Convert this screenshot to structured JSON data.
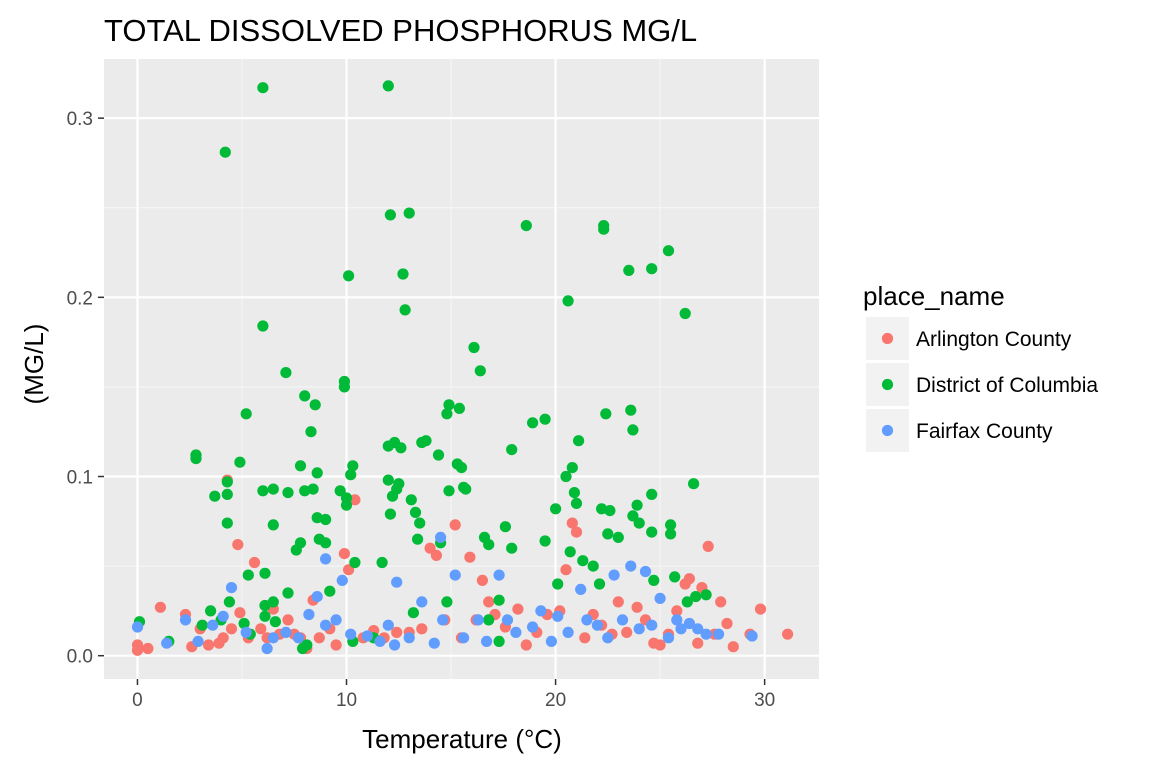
{
  "chart_data": {
    "type": "scatter",
    "title": "TOTAL DISSOLVED PHOSPHORUS MG/L",
    "xlabel": "Temperature (°C)",
    "ylabel": "(MG/L)",
    "xlim": [
      -1.6,
      32.6
    ],
    "ylim": [
      -0.013,
      0.333
    ],
    "x_ticks": [
      0,
      10,
      20,
      30
    ],
    "x_tick_labels": [
      "0",
      "10",
      "20",
      "30"
    ],
    "y_ticks": [
      0.0,
      0.1,
      0.2,
      0.3
    ],
    "y_tick_labels": [
      "0.0",
      "0.1",
      "0.2",
      "0.3"
    ],
    "grid": true,
    "legend_title": "place_name",
    "legend_position": "right",
    "series": [
      {
        "name": "Arlington County",
        "color": "#F8766D",
        "points": [
          [
            0,
            0.006
          ],
          [
            0,
            0.003
          ],
          [
            0.5,
            0.004
          ],
          [
            1.1,
            0.027
          ],
          [
            2.3,
            0.023
          ],
          [
            2.6,
            0.005
          ],
          [
            3.0,
            0.015
          ],
          [
            3.4,
            0.006
          ],
          [
            3.9,
            0.007
          ],
          [
            4.1,
            0.01
          ],
          [
            4.3,
            0.098
          ],
          [
            4.5,
            0.015
          ],
          [
            4.8,
            0.062
          ],
          [
            4.9,
            0.024
          ],
          [
            5.3,
            0.01
          ],
          [
            5.6,
            0.052
          ],
          [
            5.9,
            0.015
          ],
          [
            6.2,
            0.01
          ],
          [
            6.5,
            0.026
          ],
          [
            6.8,
            0.012
          ],
          [
            7.2,
            0.02
          ],
          [
            7.5,
            0.012
          ],
          [
            7.8,
            0.01
          ],
          [
            8.1,
            0.004
          ],
          [
            8.4,
            0.031
          ],
          [
            8.7,
            0.01
          ],
          [
            9.2,
            0.015
          ],
          [
            9.5,
            0.006
          ],
          [
            9.9,
            0.057
          ],
          [
            10.1,
            0.048
          ],
          [
            10.4,
            0.087
          ],
          [
            10.8,
            0.01
          ],
          [
            11.3,
            0.014
          ],
          [
            11.8,
            0.01
          ],
          [
            12.4,
            0.013
          ],
          [
            13.0,
            0.013
          ],
          [
            13.6,
            0.015
          ],
          [
            14.0,
            0.06
          ],
          [
            14.3,
            0.056
          ],
          [
            14.7,
            0.02
          ],
          [
            15.2,
            0.073
          ],
          [
            15.5,
            0.01
          ],
          [
            15.9,
            0.055
          ],
          [
            16.2,
            0.02
          ],
          [
            16.5,
            0.042
          ],
          [
            16.8,
            0.03
          ],
          [
            17.1,
            0.023
          ],
          [
            17.6,
            0.016
          ],
          [
            18.2,
            0.026
          ],
          [
            18.6,
            0.006
          ],
          [
            19.1,
            0.013
          ],
          [
            19.6,
            0.023
          ],
          [
            20.2,
            0.025
          ],
          [
            20.5,
            0.048
          ],
          [
            20.8,
            0.074
          ],
          [
            21.0,
            0.069
          ],
          [
            21.4,
            0.01
          ],
          [
            21.8,
            0.023
          ],
          [
            22.2,
            0.017
          ],
          [
            22.7,
            0.012
          ],
          [
            23.0,
            0.03
          ],
          [
            23.4,
            0.013
          ],
          [
            23.9,
            0.027
          ],
          [
            24.3,
            0.02
          ],
          [
            24.7,
            0.007
          ],
          [
            25.0,
            0.006
          ],
          [
            25.4,
            0.012
          ],
          [
            25.8,
            0.025
          ],
          [
            26.2,
            0.04
          ],
          [
            26.4,
            0.043
          ],
          [
            26.8,
            0.007
          ],
          [
            27.0,
            0.038
          ],
          [
            27.3,
            0.061
          ],
          [
            27.6,
            0.012
          ],
          [
            27.9,
            0.03
          ],
          [
            28.2,
            0.018
          ],
          [
            28.5,
            0.005
          ],
          [
            29.3,
            0.012
          ],
          [
            29.8,
            0.026
          ],
          [
            31.1,
            0.012
          ]
        ]
      },
      {
        "name": "District of Columbia",
        "color": "#00BA38",
        "points": [
          [
            0.1,
            0.019
          ],
          [
            1.5,
            0.008
          ],
          [
            2.8,
            0.112
          ],
          [
            2.8,
            0.11
          ],
          [
            3.1,
            0.017
          ],
          [
            3.5,
            0.025
          ],
          [
            3.7,
            0.089
          ],
          [
            4.0,
            0.02
          ],
          [
            4.2,
            0.281
          ],
          [
            4.3,
            0.097
          ],
          [
            4.3,
            0.09
          ],
          [
            4.3,
            0.074
          ],
          [
            4.4,
            0.03
          ],
          [
            4.9,
            0.108
          ],
          [
            5.1,
            0.018
          ],
          [
            5.2,
            0.135
          ],
          [
            5.3,
            0.045
          ],
          [
            5.4,
            0.012
          ],
          [
            6.0,
            0.317
          ],
          [
            6.0,
            0.184
          ],
          [
            6.0,
            0.092
          ],
          [
            6.1,
            0.046
          ],
          [
            6.1,
            0.028
          ],
          [
            6.1,
            0.022
          ],
          [
            6.5,
            0.093
          ],
          [
            6.5,
            0.073
          ],
          [
            6.5,
            0.03
          ],
          [
            6.6,
            0.019
          ],
          [
            7.1,
            0.158
          ],
          [
            7.2,
            0.091
          ],
          [
            7.2,
            0.035
          ],
          [
            7.6,
            0.059
          ],
          [
            7.8,
            0.106
          ],
          [
            7.8,
            0.063
          ],
          [
            8.0,
            0.145
          ],
          [
            8.0,
            0.092
          ],
          [
            8.3,
            0.125
          ],
          [
            8.4,
            0.093
          ],
          [
            8.5,
            0.14
          ],
          [
            8.6,
            0.102
          ],
          [
            8.6,
            0.077
          ],
          [
            8.7,
            0.065
          ],
          [
            9.0,
            0.063
          ],
          [
            9.0,
            0.076
          ],
          [
            9.2,
            0.036
          ],
          [
            9.7,
            0.092
          ],
          [
            9.9,
            0.153
          ],
          [
            9.9,
            0.15
          ],
          [
            10.0,
            0.088
          ],
          [
            10.0,
            0.084
          ],
          [
            10.1,
            0.212
          ],
          [
            10.2,
            0.101
          ],
          [
            10.3,
            0.106
          ],
          [
            10.4,
            0.052
          ],
          [
            10.3,
            0.008
          ],
          [
            11.7,
            0.052
          ],
          [
            12.0,
            0.318
          ],
          [
            12.1,
            0.246
          ],
          [
            12.0,
            0.117
          ],
          [
            12.0,
            0.098
          ],
          [
            12.1,
            0.079
          ],
          [
            12.2,
            0.089
          ],
          [
            12.3,
            0.119
          ],
          [
            12.4,
            0.093
          ],
          [
            12.5,
            0.096
          ],
          [
            12.6,
            0.116
          ],
          [
            12.7,
            0.213
          ],
          [
            12.8,
            0.193
          ],
          [
            13.0,
            0.247
          ],
          [
            13.1,
            0.087
          ],
          [
            13.3,
            0.08
          ],
          [
            13.4,
            0.065
          ],
          [
            13.5,
            0.074
          ],
          [
            13.6,
            0.119
          ],
          [
            13.8,
            0.12
          ],
          [
            14.4,
            0.112
          ],
          [
            14.5,
            0.063
          ],
          [
            14.8,
            0.135
          ],
          [
            14.9,
            0.14
          ],
          [
            14.9,
            0.092
          ],
          [
            15.3,
            0.107
          ],
          [
            15.4,
            0.138
          ],
          [
            15.5,
            0.105
          ],
          [
            15.6,
            0.094
          ],
          [
            15.7,
            0.093
          ],
          [
            16.1,
            0.172
          ],
          [
            16.4,
            0.159
          ],
          [
            16.6,
            0.066
          ],
          [
            16.8,
            0.062
          ],
          [
            17.3,
            0.031
          ],
          [
            17.6,
            0.072
          ],
          [
            17.9,
            0.115
          ],
          [
            17.9,
            0.06
          ],
          [
            18.6,
            0.24
          ],
          [
            18.9,
            0.13
          ],
          [
            19.5,
            0.132
          ],
          [
            19.5,
            0.064
          ],
          [
            20.0,
            0.082
          ],
          [
            20.1,
            0.04
          ],
          [
            20.5,
            0.1
          ],
          [
            20.6,
            0.198
          ],
          [
            20.7,
            0.058
          ],
          [
            20.8,
            0.105
          ],
          [
            20.9,
            0.091
          ],
          [
            21.0,
            0.085
          ],
          [
            21.1,
            0.12
          ],
          [
            21.3,
            0.053
          ],
          [
            21.8,
            0.05
          ],
          [
            22.1,
            0.04
          ],
          [
            22.2,
            0.082
          ],
          [
            22.3,
            0.24
          ],
          [
            22.3,
            0.238
          ],
          [
            22.4,
            0.135
          ],
          [
            22.5,
            0.068
          ],
          [
            22.6,
            0.081
          ],
          [
            23.0,
            0.066
          ],
          [
            23.5,
            0.215
          ],
          [
            23.6,
            0.137
          ],
          [
            23.7,
            0.126
          ],
          [
            23.7,
            0.078
          ],
          [
            23.9,
            0.084
          ],
          [
            24.0,
            0.074
          ],
          [
            24.6,
            0.09
          ],
          [
            24.6,
            0.216
          ],
          [
            24.6,
            0.069
          ],
          [
            24.7,
            0.042
          ],
          [
            25.4,
            0.226
          ],
          [
            25.5,
            0.073
          ],
          [
            25.5,
            0.068
          ],
          [
            25.7,
            0.044
          ],
          [
            26.2,
            0.191
          ],
          [
            26.6,
            0.096
          ],
          [
            26.3,
            0.03
          ],
          [
            26.7,
            0.033
          ],
          [
            27.2,
            0.034
          ],
          [
            7.9,
            0.004
          ],
          [
            8.1,
            0.006
          ],
          [
            11.3,
            0.01
          ],
          [
            13.2,
            0.024
          ],
          [
            14.8,
            0.03
          ],
          [
            16.8,
            0.02
          ],
          [
            17.3,
            0.008
          ]
        ]
      },
      {
        "name": "Fairfax County",
        "color": "#619CFF",
        "points": [
          [
            0.0,
            0.016
          ],
          [
            1.4,
            0.007
          ],
          [
            2.3,
            0.02
          ],
          [
            2.9,
            0.008
          ],
          [
            3.6,
            0.017
          ],
          [
            4.1,
            0.022
          ],
          [
            4.5,
            0.038
          ],
          [
            5.2,
            0.013
          ],
          [
            6.2,
            0.004
          ],
          [
            6.5,
            0.01
          ],
          [
            7.1,
            0.013
          ],
          [
            7.7,
            0.01
          ],
          [
            8.2,
            0.023
          ],
          [
            8.6,
            0.033
          ],
          [
            9.0,
            0.017
          ],
          [
            9.0,
            0.054
          ],
          [
            9.5,
            0.02
          ],
          [
            9.8,
            0.042
          ],
          [
            10.2,
            0.012
          ],
          [
            11.0,
            0.011
          ],
          [
            11.6,
            0.008
          ],
          [
            12.0,
            0.017
          ],
          [
            12.3,
            0.006
          ],
          [
            12.4,
            0.041
          ],
          [
            13.0,
            0.01
          ],
          [
            13.6,
            0.03
          ],
          [
            14.2,
            0.007
          ],
          [
            14.5,
            0.066
          ],
          [
            14.6,
            0.02
          ],
          [
            15.2,
            0.045
          ],
          [
            15.6,
            0.01
          ],
          [
            16.3,
            0.02
          ],
          [
            16.7,
            0.008
          ],
          [
            17.3,
            0.045
          ],
          [
            17.7,
            0.02
          ],
          [
            18.1,
            0.013
          ],
          [
            18.9,
            0.016
          ],
          [
            19.3,
            0.025
          ],
          [
            19.8,
            0.008
          ],
          [
            20.1,
            0.022
          ],
          [
            20.6,
            0.013
          ],
          [
            21.2,
            0.037
          ],
          [
            21.5,
            0.02
          ],
          [
            22.0,
            0.017
          ],
          [
            22.5,
            0.01
          ],
          [
            22.8,
            0.045
          ],
          [
            23.2,
            0.02
          ],
          [
            23.6,
            0.05
          ],
          [
            24.0,
            0.015
          ],
          [
            24.3,
            0.047
          ],
          [
            24.6,
            0.017
          ],
          [
            25.0,
            0.032
          ],
          [
            25.4,
            0.01
          ],
          [
            25.8,
            0.02
          ],
          [
            26.0,
            0.015
          ],
          [
            26.4,
            0.018
          ],
          [
            26.8,
            0.015
          ],
          [
            27.2,
            0.012
          ],
          [
            27.8,
            0.012
          ],
          [
            29.4,
            0.011
          ]
        ]
      }
    ]
  }
}
